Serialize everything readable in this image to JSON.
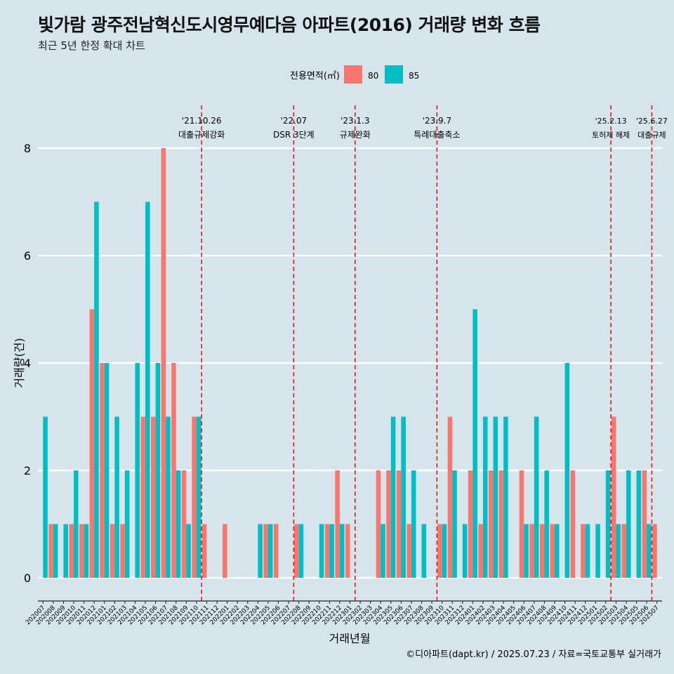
{
  "header": {
    "title": "빛가람 광주전남혁신도시영무예다음 아파트(2016) 거래량 변화 흐름",
    "subtitle": "최근 5년 한정 확대 차트"
  },
  "footer": {
    "caption": "©디아파트(dapt.kr) / 2025.07.23 / 자료=국토교통부 실거래가"
  },
  "colors": {
    "background": "#d6e4eb",
    "series_80": "#f8766d",
    "series_85": "#00bfc4",
    "event_line": "#e31a1c",
    "grid": "#ffffff"
  },
  "chart_data": {
    "type": "bar",
    "xlabel": "거래년월",
    "ylabel": "거래량(건)",
    "ylim": [
      0,
      8
    ],
    "yticks": [
      0,
      2,
      4,
      6,
      8
    ],
    "legend": {
      "title": "전용면적(㎡)",
      "position": "top"
    },
    "categories": [
      "202007",
      "202008",
      "202009",
      "202010",
      "202011",
      "202012",
      "202101",
      "202102",
      "202103",
      "202104",
      "202105",
      "202106",
      "202107",
      "202108",
      "202109",
      "202110",
      "202111",
      "202112",
      "202201",
      "202202",
      "202203",
      "202204",
      "202205",
      "202206",
      "202207",
      "202208",
      "202209",
      "202210",
      "202211",
      "202212",
      "202301",
      "202302",
      "202303",
      "202304",
      "202305",
      "202306",
      "202307",
      "202308",
      "202309",
      "202310",
      "202311",
      "202312",
      "202401",
      "202402",
      "202403",
      "202404",
      "202405",
      "202406",
      "202407",
      "202408",
      "202409",
      "202410",
      "202411",
      "202412",
      "202501",
      "202502",
      "202503",
      "202504",
      "202505",
      "202506",
      "202507"
    ],
    "series": [
      {
        "name": "80",
        "values": [
          0,
          1,
          0,
          1,
          1,
          5,
          4,
          1,
          1,
          0,
          3,
          3,
          8,
          4,
          2,
          3,
          1,
          0,
          1,
          0,
          0,
          0,
          1,
          1,
          0,
          1,
          0,
          0,
          1,
          2,
          1,
          0,
          0,
          2,
          2,
          2,
          1,
          0,
          0,
          1,
          3,
          0,
          2,
          1,
          2,
          2,
          0,
          2,
          1,
          1,
          1,
          0,
          2,
          1,
          0,
          0,
          3,
          1,
          0,
          2,
          1
        ]
      },
      {
        "name": "85",
        "values": [
          3,
          1,
          1,
          2,
          1,
          7,
          4,
          3,
          2,
          4,
          7,
          4,
          3,
          2,
          1,
          3,
          0,
          0,
          0,
          0,
          0,
          1,
          1,
          0,
          0,
          1,
          0,
          1,
          1,
          1,
          0,
          0,
          0,
          1,
          3,
          3,
          2,
          1,
          0,
          1,
          2,
          1,
          5,
          3,
          3,
          3,
          0,
          1,
          3,
          2,
          1,
          4,
          0,
          1,
          1,
          2,
          1,
          2,
          2,
          1,
          0
        ]
      }
    ],
    "events": [
      {
        "date": "'21.10.26",
        "label": "대출규제강화",
        "after_category": "202110"
      },
      {
        "date": "'22.07",
        "label": "DSR 3단계",
        "after_category": "202207"
      },
      {
        "date": "'23.1.3",
        "label": "규제완화",
        "after_category": "202301"
      },
      {
        "date": "'23.9.7",
        "label": "특례대출축소",
        "after_category": "202309"
      },
      {
        "date": "'25.2.13",
        "label": "토허제 해제",
        "after_category": "202502"
      },
      {
        "date": "'25.6.27",
        "label": "대출규제",
        "after_category": "202506"
      }
    ]
  }
}
